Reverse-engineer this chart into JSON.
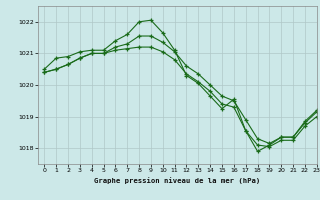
{
  "title": "Graphe pression niveau de la mer (hPa)",
  "background_color": "#cce8e8",
  "grid_color": "#b0c8c8",
  "line_color": "#1a6b1a",
  "xlim": [
    -0.5,
    23
  ],
  "ylim": [
    1017.5,
    1022.5
  ],
  "yticks": [
    1018,
    1019,
    1020,
    1021,
    1022
  ],
  "xticks": [
    0,
    1,
    2,
    3,
    4,
    5,
    6,
    7,
    8,
    9,
    10,
    11,
    12,
    13,
    14,
    15,
    16,
    17,
    18,
    19,
    20,
    21,
    22,
    23
  ],
  "line1": {
    "x": [
      0,
      1,
      2,
      3,
      4,
      5,
      6,
      7,
      8,
      9,
      10,
      11,
      12,
      13,
      14,
      15,
      16,
      17,
      18,
      19,
      20,
      21,
      22,
      23
    ],
    "y": [
      1020.5,
      1020.85,
      1020.9,
      1021.05,
      1021.1,
      1021.1,
      1021.4,
      1021.6,
      1022.0,
      1022.05,
      1021.65,
      1021.1,
      1020.3,
      1020.05,
      1019.65,
      1019.25,
      1019.55,
      1018.55,
      1017.9,
      1018.1,
      1018.35,
      1018.35,
      1018.85,
      1019.2
    ]
  },
  "line2": {
    "x": [
      0,
      1,
      2,
      3,
      4,
      5,
      6,
      7,
      8,
      9,
      10,
      11,
      12,
      13,
      14,
      15,
      16,
      17,
      18,
      19,
      20,
      21,
      22,
      23
    ],
    "y": [
      1020.4,
      1020.5,
      1020.65,
      1020.85,
      1021.0,
      1021.0,
      1021.2,
      1021.3,
      1021.55,
      1021.55,
      1021.35,
      1021.05,
      1020.6,
      1020.35,
      1020.0,
      1019.65,
      1019.5,
      1018.9,
      1018.3,
      1018.15,
      1018.35,
      1018.35,
      1018.8,
      1019.15
    ]
  },
  "line3": {
    "x": [
      0,
      1,
      2,
      3,
      4,
      5,
      6,
      7,
      8,
      9,
      10,
      11,
      12,
      13,
      14,
      15,
      16,
      17,
      18,
      19,
      20,
      21,
      22,
      23
    ],
    "y": [
      1020.4,
      1020.5,
      1020.65,
      1020.85,
      1021.0,
      1021.0,
      1021.1,
      1021.15,
      1021.2,
      1021.2,
      1021.05,
      1020.8,
      1020.35,
      1020.1,
      1019.8,
      1019.4,
      1019.3,
      1018.55,
      1018.1,
      1018.05,
      1018.25,
      1018.25,
      1018.7,
      1019.0
    ]
  }
}
